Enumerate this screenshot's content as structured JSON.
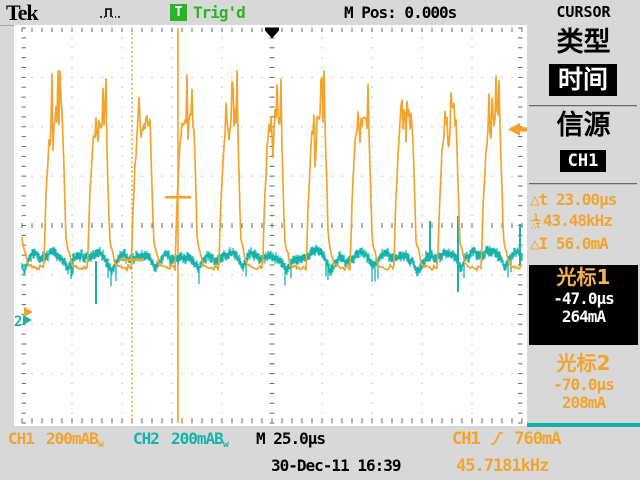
{
  "top": {
    "brand": "Tek",
    "trigger_icon": "T",
    "trigger_status": "Trig'd",
    "m_pos": "M Pos: 0.000s",
    "menu_title": "CURSOR"
  },
  "sidebar": {
    "type_label": "类型",
    "type_value": "时间",
    "source_label": "信源",
    "source_value": "CH1",
    "meas_dt_sym": "△t",
    "meas_dt_value": "23.00µs",
    "meas_inv_num": "1",
    "meas_inv_den": "△t",
    "meas_inv_value": "43.48kHz",
    "meas_di_sym": "△I",
    "meas_di_value": "56.0mA",
    "cursor1_label": "光标1",
    "cursor1_time": "-47.0µs",
    "cursor1_amp": "264mA",
    "cursor2_label": "光标2",
    "cursor2_time": "-70.0µs",
    "cursor2_amp": "208mA"
  },
  "bottom": {
    "ch1_label": "CH1",
    "ch1_scale": "200mA",
    "bw": "B",
    "bw_sub": "w",
    "ch2_label": "CH2",
    "ch2_scale": "200mA",
    "timebase": "M 25.0µs",
    "trig_source": "CH1",
    "trig_level": "760mA",
    "datetime": "30-Dec-11 16:39",
    "freq": "45.7181kHz"
  },
  "colors": {
    "ch1": "#f2a42e",
    "ch2": "#17b3ab",
    "trig_green": "#2cb32c",
    "grid_dot": "#bdbdbd",
    "tick": "#6b6b6b",
    "marker_black": "#000000"
  },
  "chart_data": {
    "type": "line",
    "title": "Oscilloscope capture: CH1 current pulses with CH2 noise band",
    "x_axis": {
      "per_div_us": 25.0,
      "divisions": 10,
      "m_pos_s": 0.0
    },
    "y_axis": {
      "divisions": 8
    },
    "series": [
      {
        "name": "CH1",
        "units": "mA",
        "per_div": 200,
        "coupling_bw_limit": true,
        "baseline_mA": 200,
        "peak_mA": 985,
        "freq_kHz": 45.7181,
        "shape": "periodic pulses, stepped rise, noisy multi-spike top with mid notch, steep fall"
      },
      {
        "name": "CH2",
        "units": "mA",
        "per_div": 200,
        "coupling_bw_limit": true,
        "mean_mA": 240,
        "band_mA": 60,
        "shape": "noisy band with dips synchronized to CH1 falling edges"
      }
    ],
    "cursors": {
      "cursor1_us": -47.0,
      "cursor1_mA": 264,
      "cursor2_us": -70.0,
      "cursor2_mA": 208,
      "delta_t_us": 23.0,
      "one_over_dt_kHz": 43.48,
      "delta_I_mA": 56.0
    },
    "trigger": {
      "source": "CH1",
      "edge": "rising",
      "level_mA": 760,
      "frequency_kHz": 45.7181
    }
  }
}
